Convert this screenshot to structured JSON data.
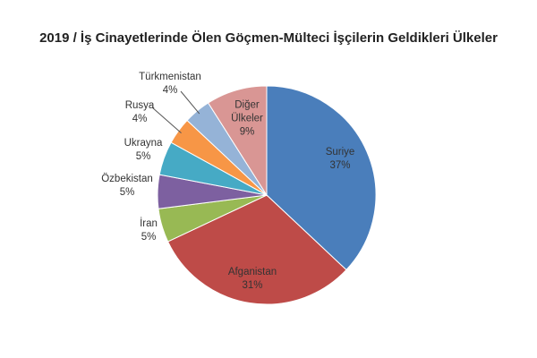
{
  "chart_data": {
    "type": "pie",
    "title": "2019 / İş Cinayetlerinde Ölen Göçmen-Mülteci İşçilerin Geldikleri Ülkeler",
    "categories": [
      "Suriye",
      "Afganistan",
      "İran",
      "Özbekistan",
      "Ukrayna",
      "Rusya",
      "Türkmenistan",
      "Diğer Ülkeler"
    ],
    "values": [
      37,
      31,
      5,
      5,
      5,
      4,
      4,
      9
    ],
    "value_labels": [
      "37%",
      "31%",
      "5%",
      "5%",
      "5%",
      "4%",
      "4%",
      "9%"
    ],
    "colors": [
      "#4a7ebb",
      "#be4b48",
      "#98b954",
      "#7d60a0",
      "#46aac5",
      "#f79646",
      "#95b3d7",
      "#d99694"
    ]
  }
}
